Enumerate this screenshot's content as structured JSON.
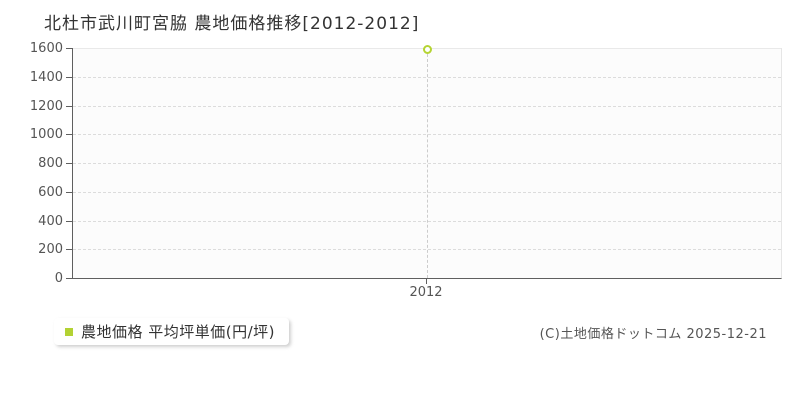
{
  "page": {
    "title": "北杜市武川町宮脇 農地価格推移[2012-2012]",
    "copyright": "(C)土地価格ドットコム 2025-12-21"
  },
  "legend": {
    "label": "農地価格 平均坪単価(円/坪)",
    "marker_color": "#b3d233"
  },
  "chart_data": {
    "type": "scatter",
    "title": "北杜市武川町宮脇 農地価格推移[2012-2012]",
    "series": [
      {
        "name": "農地価格 平均坪単価(円/坪)",
        "x": [
          2012
        ],
        "values": [
          1590
        ],
        "point_color": "#b5d433",
        "point_fill": "#ffffff"
      }
    ],
    "x_tick_labels": [
      "2012"
    ],
    "y_tick_labels": [
      "0",
      "200",
      "400",
      "600",
      "800",
      "1000",
      "1200",
      "1400",
      "1600"
    ],
    "ylim": [
      0,
      1600
    ],
    "xlabel": "",
    "ylabel": "",
    "grid": "horizontal-dashed",
    "legend_position": "bottom-left",
    "plot_background": "#fcfcfc"
  }
}
